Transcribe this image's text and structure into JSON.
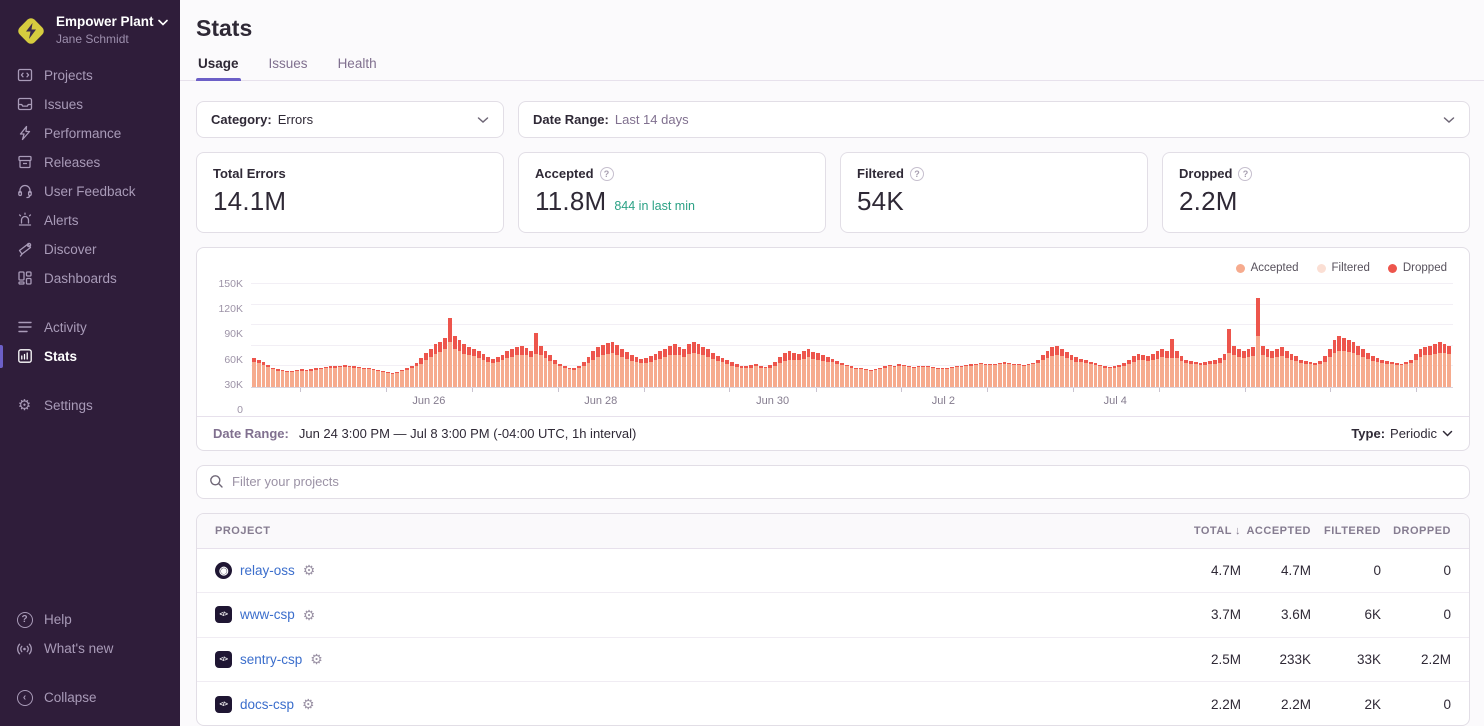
{
  "sidebar": {
    "org": {
      "name": "Empower Plant",
      "user": "Jane Schmidt"
    },
    "items": [
      {
        "label": "Projects"
      },
      {
        "label": "Issues"
      },
      {
        "label": "Performance"
      },
      {
        "label": "Releases"
      },
      {
        "label": "User Feedback"
      },
      {
        "label": "Alerts"
      },
      {
        "label": "Discover"
      },
      {
        "label": "Dashboards"
      },
      {
        "label": "Activity"
      },
      {
        "label": "Stats"
      },
      {
        "label": "Settings"
      }
    ],
    "footer": [
      {
        "label": "Help"
      },
      {
        "label": "What's new"
      },
      {
        "label": "Collapse"
      }
    ],
    "active_item": "Stats"
  },
  "header": {
    "title": "Stats",
    "tabs": [
      {
        "label": "Usage",
        "active": true
      },
      {
        "label": "Issues",
        "active": false
      },
      {
        "label": "Health",
        "active": false
      }
    ]
  },
  "filters": {
    "category_label": "Category:",
    "category_value": "Errors",
    "date_label": "Date Range:",
    "date_value": "Last 14 days"
  },
  "cards": [
    {
      "label": "Total Errors",
      "value": "14.1M",
      "sub": "",
      "has_help": false
    },
    {
      "label": "Accepted",
      "value": "11.8M",
      "sub": "844 in last min",
      "has_help": true
    },
    {
      "label": "Filtered",
      "value": "54K",
      "sub": "",
      "has_help": true
    },
    {
      "label": "Dropped",
      "value": "2.2M",
      "sub": "",
      "has_help": true
    }
  ],
  "chart_footer": {
    "label": "Date Range:",
    "value": "Jun 24 3:00 PM — Jul 8 3:00 PM (-04:00 UTC, 1h interval)",
    "type_label": "Type:",
    "type_value": "Periodic"
  },
  "project_filter": {
    "placeholder": "Filter your projects"
  },
  "table": {
    "headers": [
      "PROJECT",
      "TOTAL",
      "ACCEPTED",
      "FILTERED",
      "DROPPED"
    ],
    "sort_column": "TOTAL",
    "sort_arrow": "↓",
    "rows": [
      {
        "name": "relay-oss",
        "platform": "relay",
        "total": "4.7M",
        "accepted": "4.7M",
        "filtered": "0",
        "dropped": "0"
      },
      {
        "name": "www-csp",
        "platform": "csp",
        "total": "3.7M",
        "accepted": "3.6M",
        "filtered": "6K",
        "dropped": "0"
      },
      {
        "name": "sentry-csp",
        "platform": "csp",
        "total": "2.5M",
        "accepted": "233K",
        "filtered": "33K",
        "dropped": "2.2M"
      },
      {
        "name": "docs-csp",
        "platform": "csp",
        "total": "2.2M",
        "accepted": "2.2M",
        "filtered": "2K",
        "dropped": "0"
      }
    ]
  },
  "colors": {
    "sidebar_bg": "#2F1D3A",
    "accent_purple": "#6C5FC7",
    "link_blue": "#3B6ECC",
    "teal": "#2BA185",
    "accepted": "#F6AB8E",
    "filtered": "#FBDFD4",
    "dropped": "#ED554C"
  },
  "chart_data": {
    "type": "bar",
    "stacked": true,
    "title": "",
    "xlabel": "",
    "ylabel": "",
    "unit": "events per 1h interval, values in thousands",
    "ylim": [
      0,
      150000
    ],
    "yticks": [
      "0",
      "30K",
      "60K",
      "90K",
      "120K",
      "150K"
    ],
    "xticks": [
      {
        "label": "Jun 26",
        "pos": 14.8
      },
      {
        "label": "Jun 28",
        "pos": 29.1
      },
      {
        "label": "Jun 30",
        "pos": 43.4
      },
      {
        "label": "Jul 2",
        "pos": 57.6
      },
      {
        "label": "Jul 4",
        "pos": 71.9
      }
    ],
    "tick_positions": [
      4.1,
      11.2,
      18.4,
      25.5,
      32.7,
      39.8,
      47.0,
      54.1,
      61.2,
      68.4,
      75.5,
      82.7,
      89.8,
      96.9
    ],
    "legend": [
      {
        "label": "Accepted",
        "color": "#F6AB8E"
      },
      {
        "label": "Filtered",
        "color": "#FBDFD4"
      },
      {
        "label": "Dropped",
        "color": "#ED554C"
      }
    ],
    "legend_position": "top-right",
    "grid": true,
    "bars_format": "[total_K, dropped_top_K]",
    "bars": [
      [
        42,
        6
      ],
      [
        40,
        5
      ],
      [
        36,
        4
      ],
      [
        32,
        3
      ],
      [
        28,
        2
      ],
      [
        26,
        2
      ],
      [
        25,
        1
      ],
      [
        24,
        1
      ],
      [
        24,
        1
      ],
      [
        25,
        1
      ],
      [
        26,
        2
      ],
      [
        25,
        1
      ],
      [
        26,
        2
      ],
      [
        27,
        2
      ],
      [
        28,
        2
      ],
      [
        29,
        2
      ],
      [
        30,
        3
      ],
      [
        31,
        3
      ],
      [
        31,
        2
      ],
      [
        32,
        3
      ],
      [
        31,
        2
      ],
      [
        30,
        2
      ],
      [
        29,
        2
      ],
      [
        28,
        2
      ],
      [
        27,
        1
      ],
      [
        26,
        1
      ],
      [
        25,
        1
      ],
      [
        24,
        1
      ],
      [
        22,
        1
      ],
      [
        20,
        1
      ],
      [
        22,
        1
      ],
      [
        25,
        2
      ],
      [
        27,
        2
      ],
      [
        30,
        3
      ],
      [
        35,
        5
      ],
      [
        42,
        8
      ],
      [
        50,
        10
      ],
      [
        56,
        12
      ],
      [
        62,
        14
      ],
      [
        66,
        15
      ],
      [
        72,
        16
      ],
      [
        100,
        35
      ],
      [
        75,
        20
      ],
      [
        68,
        16
      ],
      [
        62,
        14
      ],
      [
        58,
        12
      ],
      [
        55,
        10
      ],
      [
        52,
        10
      ],
      [
        48,
        8
      ],
      [
        44,
        7
      ],
      [
        41,
        6
      ],
      [
        43,
        7
      ],
      [
        47,
        8
      ],
      [
        52,
        10
      ],
      [
        55,
        11
      ],
      [
        58,
        12
      ],
      [
        60,
        13
      ],
      [
        57,
        11
      ],
      [
        53,
        10
      ],
      [
        78,
        30
      ],
      [
        60,
        14
      ],
      [
        52,
        10
      ],
      [
        46,
        8
      ],
      [
        40,
        6
      ],
      [
        34,
        4
      ],
      [
        30,
        3
      ],
      [
        28,
        2
      ],
      [
        27,
        2
      ],
      [
        30,
        3
      ],
      [
        36,
        6
      ],
      [
        44,
        9
      ],
      [
        52,
        12
      ],
      [
        58,
        14
      ],
      [
        61,
        15
      ],
      [
        64,
        16
      ],
      [
        65,
        16
      ],
      [
        61,
        14
      ],
      [
        56,
        12
      ],
      [
        51,
        10
      ],
      [
        46,
        8
      ],
      [
        43,
        7
      ],
      [
        41,
        6
      ],
      [
        42,
        7
      ],
      [
        45,
        8
      ],
      [
        48,
        9
      ],
      [
        52,
        11
      ],
      [
        56,
        12
      ],
      [
        60,
        14
      ],
      [
        62,
        15
      ],
      [
        59,
        13
      ],
      [
        56,
        12
      ],
      [
        63,
        15
      ],
      [
        65,
        16
      ],
      [
        63,
        15
      ],
      [
        59,
        13
      ],
      [
        55,
        11
      ],
      [
        50,
        9
      ],
      [
        45,
        7
      ],
      [
        42,
        6
      ],
      [
        40,
        6
      ],
      [
        36,
        5
      ],
      [
        33,
        4
      ],
      [
        31,
        3
      ],
      [
        30,
        3
      ],
      [
        32,
        4
      ],
      [
        34,
        4
      ],
      [
        31,
        3
      ],
      [
        29,
        2
      ],
      [
        32,
        4
      ],
      [
        37,
        6
      ],
      [
        44,
        9
      ],
      [
        49,
        11
      ],
      [
        52,
        12
      ],
      [
        50,
        10
      ],
      [
        48,
        9
      ],
      [
        52,
        11
      ],
      [
        55,
        12
      ],
      [
        51,
        10
      ],
      [
        49,
        9
      ],
      [
        46,
        8
      ],
      [
        43,
        6
      ],
      [
        41,
        5
      ],
      [
        38,
        4
      ],
      [
        35,
        3
      ],
      [
        32,
        2
      ],
      [
        30,
        2
      ],
      [
        28,
        1
      ],
      [
        27,
        1
      ],
      [
        26,
        1
      ],
      [
        25,
        1
      ],
      [
        26,
        1
      ],
      [
        28,
        1
      ],
      [
        30,
        2
      ],
      [
        32,
        2
      ],
      [
        31,
        1
      ],
      [
        33,
        2
      ],
      [
        32,
        1
      ],
      [
        30,
        1
      ],
      [
        29,
        1
      ],
      [
        30,
        1
      ],
      [
        31,
        1
      ],
      [
        30,
        1
      ],
      [
        29,
        1
      ],
      [
        28,
        1
      ],
      [
        27,
        1
      ],
      [
        28,
        1
      ],
      [
        29,
        1
      ],
      [
        30,
        1
      ],
      [
        31,
        1
      ],
      [
        32,
        1
      ],
      [
        33,
        2
      ],
      [
        34,
        2
      ],
      [
        35,
        2
      ],
      [
        34,
        1
      ],
      [
        33,
        1
      ],
      [
        34,
        2
      ],
      [
        35,
        2
      ],
      [
        36,
        2
      ],
      [
        35,
        2
      ],
      [
        34,
        1
      ],
      [
        33,
        1
      ],
      [
        32,
        1
      ],
      [
        33,
        1
      ],
      [
        35,
        2
      ],
      [
        40,
        5
      ],
      [
        47,
        8
      ],
      [
        53,
        11
      ],
      [
        58,
        13
      ],
      [
        60,
        14
      ],
      [
        56,
        11
      ],
      [
        51,
        9
      ],
      [
        46,
        7
      ],
      [
        43,
        6
      ],
      [
        41,
        5
      ],
      [
        39,
        4
      ],
      [
        37,
        3
      ],
      [
        35,
        3
      ],
      [
        32,
        2
      ],
      [
        30,
        2
      ],
      [
        29,
        1
      ],
      [
        30,
        2
      ],
      [
        32,
        3
      ],
      [
        35,
        4
      ],
      [
        40,
        6
      ],
      [
        45,
        8
      ],
      [
        48,
        9
      ],
      [
        47,
        8
      ],
      [
        45,
        7
      ],
      [
        48,
        9
      ],
      [
        52,
        11
      ],
      [
        55,
        12
      ],
      [
        52,
        10
      ],
      [
        70,
        28
      ],
      [
        52,
        10
      ],
      [
        45,
        7
      ],
      [
        40,
        5
      ],
      [
        38,
        4
      ],
      [
        36,
        3
      ],
      [
        35,
        3
      ],
      [
        36,
        4
      ],
      [
        38,
        5
      ],
      [
        40,
        6
      ],
      [
        42,
        7
      ],
      [
        48,
        9
      ],
      [
        85,
        35
      ],
      [
        60,
        14
      ],
      [
        55,
        11
      ],
      [
        52,
        10
      ],
      [
        55,
        12
      ],
      [
        58,
        13
      ],
      [
        130,
        55
      ],
      [
        60,
        14
      ],
      [
        55,
        11
      ],
      [
        52,
        10
      ],
      [
        55,
        12
      ],
      [
        58,
        13
      ],
      [
        52,
        10
      ],
      [
        48,
        8
      ],
      [
        45,
        7
      ],
      [
        40,
        5
      ],
      [
        38,
        4
      ],
      [
        36,
        3
      ],
      [
        35,
        3
      ],
      [
        38,
        5
      ],
      [
        45,
        8
      ],
      [
        55,
        12
      ],
      [
        68,
        18
      ],
      [
        75,
        22
      ],
      [
        72,
        20
      ],
      [
        68,
        17
      ],
      [
        65,
        15
      ],
      [
        60,
        13
      ],
      [
        55,
        11
      ],
      [
        50,
        9
      ],
      [
        45,
        7
      ],
      [
        42,
        6
      ],
      [
        40,
        5
      ],
      [
        38,
        4
      ],
      [
        36,
        3
      ],
      [
        35,
        3
      ],
      [
        34,
        2
      ],
      [
        36,
        3
      ],
      [
        40,
        5
      ],
      [
        48,
        8
      ],
      [
        55,
        11
      ],
      [
        58,
        12
      ],
      [
        60,
        13
      ],
      [
        62,
        14
      ],
      [
        65,
        15
      ],
      [
        63,
        14
      ],
      [
        60,
        12
      ]
    ]
  }
}
